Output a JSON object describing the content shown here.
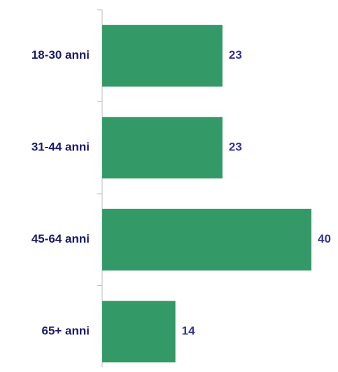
{
  "chart_data": {
    "type": "bar",
    "orientation": "horizontal",
    "categories": [
      "18-30 anni",
      "31-44 anni",
      "45-64 anni",
      "65+ anni"
    ],
    "values": [
      23,
      23,
      40,
      14
    ],
    "color": "#339966",
    "xlim": [
      0,
      40
    ]
  }
}
